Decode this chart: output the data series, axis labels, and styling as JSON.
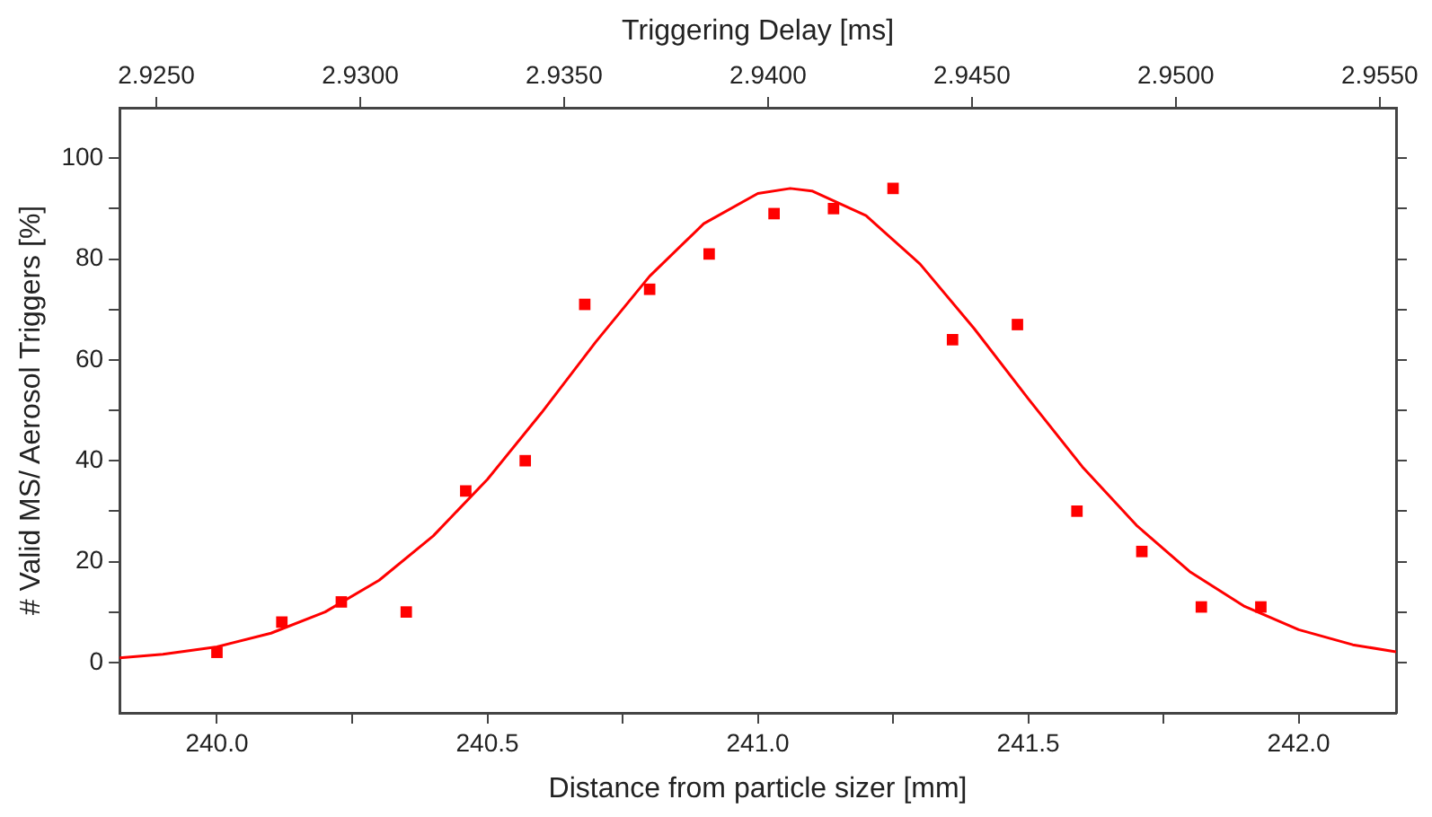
{
  "chart_data": {
    "type": "scatter",
    "xlabel": "Distance from particle sizer [mm]",
    "ylabel": "# Valid MS/ Aerosol Triggers [%]",
    "x2label": "Triggering Delay [ms]",
    "xlim": [
      239.82,
      242.18
    ],
    "xticks": [
      {
        "value": 240,
        "label": "240.0"
      },
      {
        "value": 240.25,
        "label": null
      },
      {
        "value": 240.5,
        "label": "240.5"
      },
      {
        "value": 240.75,
        "label": null
      },
      {
        "value": 241,
        "label": "241.0"
      },
      {
        "value": 241.25,
        "label": null
      },
      {
        "value": 241.5,
        "label": "241.5"
      },
      {
        "value": 241.75,
        "label": null
      },
      {
        "value": 242,
        "label": "242.0"
      }
    ],
    "x2lim": [
      2.9241,
      2.9554
    ],
    "x2ticks": [
      {
        "value": 2.925,
        "label": "2.9250"
      },
      {
        "value": 2.93,
        "label": "2.9300"
      },
      {
        "value": 2.935,
        "label": "2.9350"
      },
      {
        "value": 2.94,
        "label": "2.9400"
      },
      {
        "value": 2.945,
        "label": "2.9450"
      },
      {
        "value": 2.95,
        "label": "2.9500"
      },
      {
        "value": 2.955,
        "label": "2.9550"
      }
    ],
    "ylim": [
      -10,
      110
    ],
    "yticks": [
      0,
      {
        "value": 10,
        "label": null
      },
      20,
      {
        "value": 30,
        "label": null
      },
      40,
      {
        "value": 50,
        "label": null
      },
      60,
      {
        "value": 70,
        "label": null
      },
      80,
      {
        "value": 90,
        "label": null
      },
      100
    ],
    "grid": false,
    "legend": false,
    "marker": "square",
    "series": [
      {
        "color": "#ff0000",
        "x": [
          240.0,
          240.12,
          240.23,
          240.35,
          240.46,
          240.57,
          240.68,
          240.8,
          240.91,
          241.03,
          241.14,
          241.25,
          241.36,
          241.48,
          241.59,
          241.71,
          241.82,
          241.93
        ],
        "values": [
          2,
          8,
          12,
          10,
          34,
          40,
          71,
          74,
          81,
          89,
          90,
          94,
          64,
          67,
          30,
          22,
          11,
          11
        ]
      },
      {
        "type": "line",
        "color": "#ff0000",
        "marker": "none",
        "line_style": "solid",
        "x": [
          239.82,
          239.9,
          240.0,
          240.1,
          240.2,
          240.3,
          240.4,
          240.5,
          240.6,
          240.7,
          240.8,
          240.9,
          241.0,
          241.06,
          241.1,
          241.2,
          241.3,
          241.4,
          241.5,
          241.6,
          241.7,
          241.8,
          241.9,
          242.0,
          242.1,
          242.18
        ],
        "values": [
          0.9,
          1.6,
          3.1,
          5.8,
          10.0,
          16.3,
          25.1,
          36.3,
          49.5,
          63.5,
          76.6,
          87.0,
          93.0,
          94.0,
          93.5,
          88.6,
          79.0,
          66.2,
          52.3,
          38.8,
          27.2,
          17.9,
          11.1,
          6.5,
          3.5,
          2.1
        ]
      }
    ]
  }
}
